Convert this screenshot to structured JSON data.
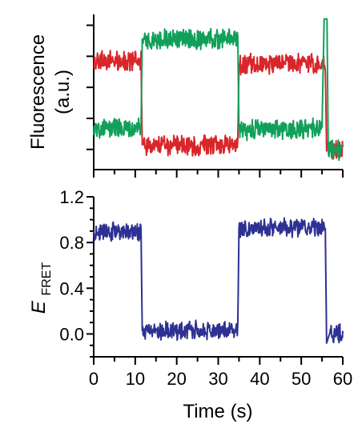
{
  "figure": {
    "x_label": "Time (s)",
    "x_ticks": [
      "0",
      "10",
      "20",
      "30",
      "40",
      "50",
      "60"
    ]
  },
  "chart_data": [
    {
      "type": "line",
      "panel": "top",
      "title": "",
      "ylabel_line1": "Fluorescence",
      "ylabel_line2": "(a.u.)",
      "xlabel": "",
      "xlim": [
        0,
        60
      ],
      "yticks_labeled": false,
      "series": [
        {
          "color": "#d9262a",
          "x": [
            0,
            11.4,
            11.7,
            34.7,
            35.0,
            55.8,
            56.1,
            60
          ],
          "values": [
            0.7,
            0.7,
            0.16,
            0.16,
            0.68,
            0.68,
            0.12,
            0.12
          ]
        },
        {
          "color": "#11a05a",
          "x": [
            0,
            11.4,
            11.7,
            34.7,
            35.0,
            55.0,
            55.5,
            56.2,
            56.5,
            60
          ],
          "values": [
            0.27,
            0.27,
            0.84,
            0.84,
            0.26,
            0.26,
            0.97,
            0.97,
            0.12,
            0.12
          ]
        }
      ]
    },
    {
      "type": "line",
      "panel": "bottom",
      "title": "",
      "ylabel_main": "E",
      "ylabel_sub": "FRET",
      "xlabel": "Time (s)",
      "xlim": [
        0,
        60
      ],
      "ylim": [
        -0.2,
        1.2
      ],
      "yticks": [
        "0.0",
        "0.4",
        "0.8",
        "1.2"
      ],
      "series": [
        {
          "color": "#2e3192",
          "x": [
            0,
            11.4,
            11.7,
            34.7,
            35.0,
            55.8,
            56.1,
            56.8,
            60
          ],
          "values": [
            0.89,
            0.89,
            0.03,
            0.03,
            0.93,
            0.93,
            -0.08,
            0.0,
            0.0
          ]
        }
      ]
    }
  ]
}
